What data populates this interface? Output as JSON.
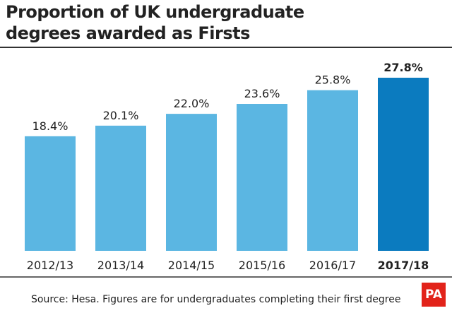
{
  "chart_data": {
    "type": "bar",
    "title": "Proportion of UK undergraduate degrees awarded as Firsts",
    "categories": [
      "2012/13",
      "2013/14",
      "2014/15",
      "2015/16",
      "2016/17",
      "2017/18"
    ],
    "values": [
      18.4,
      20.1,
      22.0,
      23.6,
      25.8,
      27.8
    ],
    "value_labels": [
      "18.4%",
      "20.1%",
      "22.0%",
      "23.6%",
      "25.8%",
      "27.8%"
    ],
    "colors": [
      "#5bb6e2",
      "#5bb6e2",
      "#5bb6e2",
      "#5bb6e2",
      "#5bb6e2",
      "#0b7bbf"
    ],
    "source": "Source: Hesa. Figures are for undergraduates completing their first degree",
    "logo": "PA"
  }
}
